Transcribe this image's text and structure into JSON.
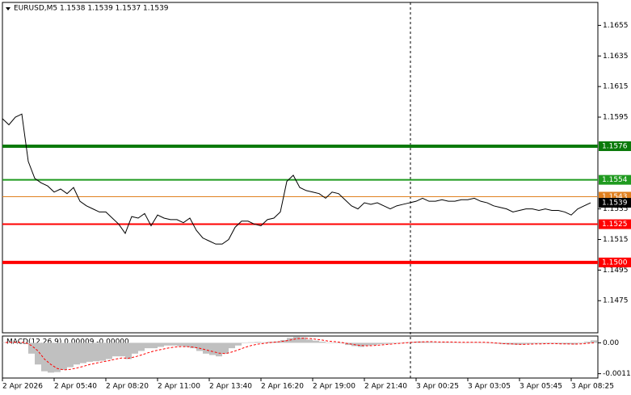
{
  "chart_data": [
    {
      "type": "line",
      "title": "EURUSD,M5  1.1538 1.1539 1.1537 1.1539",
      "xlim": [
        0,
        92.125
      ],
      "xticks": [
        {
          "value": 0,
          "label": "2 Apr 2026"
        },
        {
          "value": 8,
          "label": "2 Apr 05:40"
        },
        {
          "value": 16,
          "label": "2 Apr 08:20"
        },
        {
          "value": 24,
          "label": "2 Apr 11:00"
        },
        {
          "value": 32,
          "label": "2 Apr 13:40"
        },
        {
          "value": 40,
          "label": "2 Apr 16:20"
        },
        {
          "value": 48,
          "label": "2 Apr 19:00"
        },
        {
          "value": 56,
          "label": "2 Apr 21:40"
        },
        {
          "value": 64,
          "label": "3 Apr 00:25"
        },
        {
          "value": 72,
          "label": "3 Apr 03:05"
        },
        {
          "value": 80,
          "label": "3 Apr 05:45"
        },
        {
          "value": 88,
          "label": "3 Apr 08:25"
        }
      ],
      "ylim": [
        1.1454,
        1.167
      ],
      "yticks": [
        1.1655,
        1.1635,
        1.1615,
        1.1595,
        1.1535,
        1.1515,
        1.1495,
        1.1475
      ],
      "series": [
        {
          "color": "#000000",
          "values": [
            1.1594,
            1.159,
            1.1595,
            1.1597,
            1.1566,
            1.1555,
            1.1552,
            1.155,
            1.1546,
            1.1548,
            1.1545,
            1.1549,
            1.154,
            1.1537,
            1.1535,
            1.1533,
            1.1533,
            1.1529,
            1.1525,
            1.1519,
            1.153,
            1.1529,
            1.1532,
            1.1524,
            1.1531,
            1.1529,
            1.1528,
            1.1528,
            1.1526,
            1.1529,
            1.1521,
            1.1516,
            1.1514,
            1.1512,
            1.1512,
            1.1515,
            1.1523,
            1.1527,
            1.1527,
            1.1525,
            1.1524,
            1.1528,
            1.1529,
            1.1533,
            1.1553,
            1.1557,
            1.1549,
            1.1547,
            1.1546,
            1.1545,
            1.1542,
            1.1546,
            1.1545,
            1.1541,
            1.1537,
            1.1535,
            1.1539,
            1.1538,
            1.1539,
            1.1537,
            1.1535,
            1.1537,
            1.1538,
            1.1539,
            1.154,
            1.1542,
            1.154,
            1.154,
            1.1541,
            1.154,
            1.154,
            1.1541,
            1.1541,
            1.1542,
            1.154,
            1.1539,
            1.1537,
            1.1536,
            1.1535,
            1.1533,
            1.1534,
            1.1535,
            1.1535,
            1.1534,
            1.1535,
            1.1534,
            1.1534,
            1.1533,
            1.1531,
            1.1535,
            1.1537,
            1.1539
          ]
        }
      ],
      "levels": [
        {
          "value": 1.1576,
          "color": "#0b7a0b"
        },
        {
          "value": 1.1554,
          "color": "#1f9a1f"
        },
        {
          "value": 1.1525,
          "color": "#ff0000"
        },
        {
          "value": {
            "value": 1.15,
            "label": "1.1500"
          },
          "color": "#ff0000"
        }
      ],
      "ask_line": {
        "value": 1.1543,
        "color": "#e0801f"
      },
      "last_price": 1.1539
    },
    {
      "type": "macd",
      "title": "MACD(12,26,9) 0.00009 -0.00000",
      "xlim": [
        0,
        92.125
      ],
      "ylim": [
        -0.0013,
        0.00025
      ],
      "yticks": [
        {
          "value": 0,
          "label": "0.00"
        },
        -0.00114
      ],
      "histogram": {
        "color": "#c0c0c0",
        "values": [
          2e-05,
          3e-05,
          1e-05,
          -2e-05,
          -0.0004,
          -0.0008,
          -0.00105,
          -0.0011,
          -0.00108,
          -0.001,
          -0.0009,
          -0.0008,
          -0.00075,
          -0.0007,
          -0.00068,
          -0.00066,
          -0.0006,
          -0.0005,
          -0.0005,
          -0.0006,
          -0.0004,
          -0.0003,
          -0.0002,
          -0.0002,
          -0.00015,
          -0.0001,
          -0.0001,
          -0.00012,
          -0.00015,
          -0.0002,
          -0.0003,
          -0.0004,
          -0.00045,
          -0.0005,
          -0.0004,
          -0.0002,
          -0.0001,
          0,
          2e-05,
          3e-05,
          2e-05,
          4e-05,
          5e-05,
          0.0001,
          0.00018,
          0.00022,
          0.0002,
          0.00012,
          8e-05,
          4e-05,
          0,
          1e-05,
          -2e-05,
          -8e-05,
          -0.00012,
          -0.00015,
          -0.0001,
          -8e-05,
          -5e-05,
          -4e-05,
          -2e-05,
          0,
          2e-05,
          4e-05,
          5e-05,
          4e-05,
          3e-05,
          2e-05,
          3e-05,
          2e-05,
          2e-05,
          1e-05,
          2e-05,
          2e-05,
          1e-05,
          -1e-05,
          -3e-05,
          -5e-05,
          -6e-05,
          -7e-05,
          -6e-05,
          -4e-05,
          -3e-05,
          -3e-05,
          -3e-05,
          -3e-05,
          -4e-05,
          -5e-05,
          -6e-05,
          -2e-05,
          4e-05,
          9e-05
        ]
      },
      "signal": {
        "color": "#ff0000",
        "values": [
          1e-05,
          2e-05,
          2e-05,
          1e-05,
          -0.0001,
          -0.0003,
          -0.0006,
          -0.0008,
          -0.00095,
          -0.001,
          -0.00098,
          -0.00093,
          -0.00087,
          -0.0008,
          -0.00075,
          -0.0007,
          -0.00066,
          -0.0006,
          -0.00056,
          -0.00057,
          -0.00052,
          -0.00045,
          -0.00037,
          -0.0003,
          -0.00025,
          -0.0002,
          -0.00016,
          -0.00014,
          -0.00014,
          -0.00016,
          -0.0002,
          -0.00026,
          -0.00032,
          -0.00038,
          -0.0004,
          -0.00034,
          -0.00026,
          -0.00017,
          -0.0001,
          -5e-05,
          -2e-05,
          1e-05,
          3e-05,
          6e-05,
          0.0001,
          0.00015,
          0.00017,
          0.00016,
          0.00013,
          0.0001,
          6e-05,
          4e-05,
          1e-05,
          -3e-05,
          -7e-05,
          -0.0001,
          -0.00011,
          -0.0001,
          -8e-05,
          -6e-05,
          -4e-05,
          -2e-05,
          0,
          2e-05,
          3e-05,
          4e-05,
          4e-05,
          3e-05,
          3e-05,
          3e-05,
          2e-05,
          2e-05,
          2e-05,
          2e-05,
          2e-05,
          1e-05,
          -1e-05,
          -3e-05,
          -4e-05,
          -5e-05,
          -6e-05,
          -5e-05,
          -4e-05,
          -4e-05,
          -3e-05,
          -3e-05,
          -4e-05,
          -4e-05,
          -5e-05,
          -4e-05,
          -2e-05,
          0
        ]
      }
    }
  ]
}
